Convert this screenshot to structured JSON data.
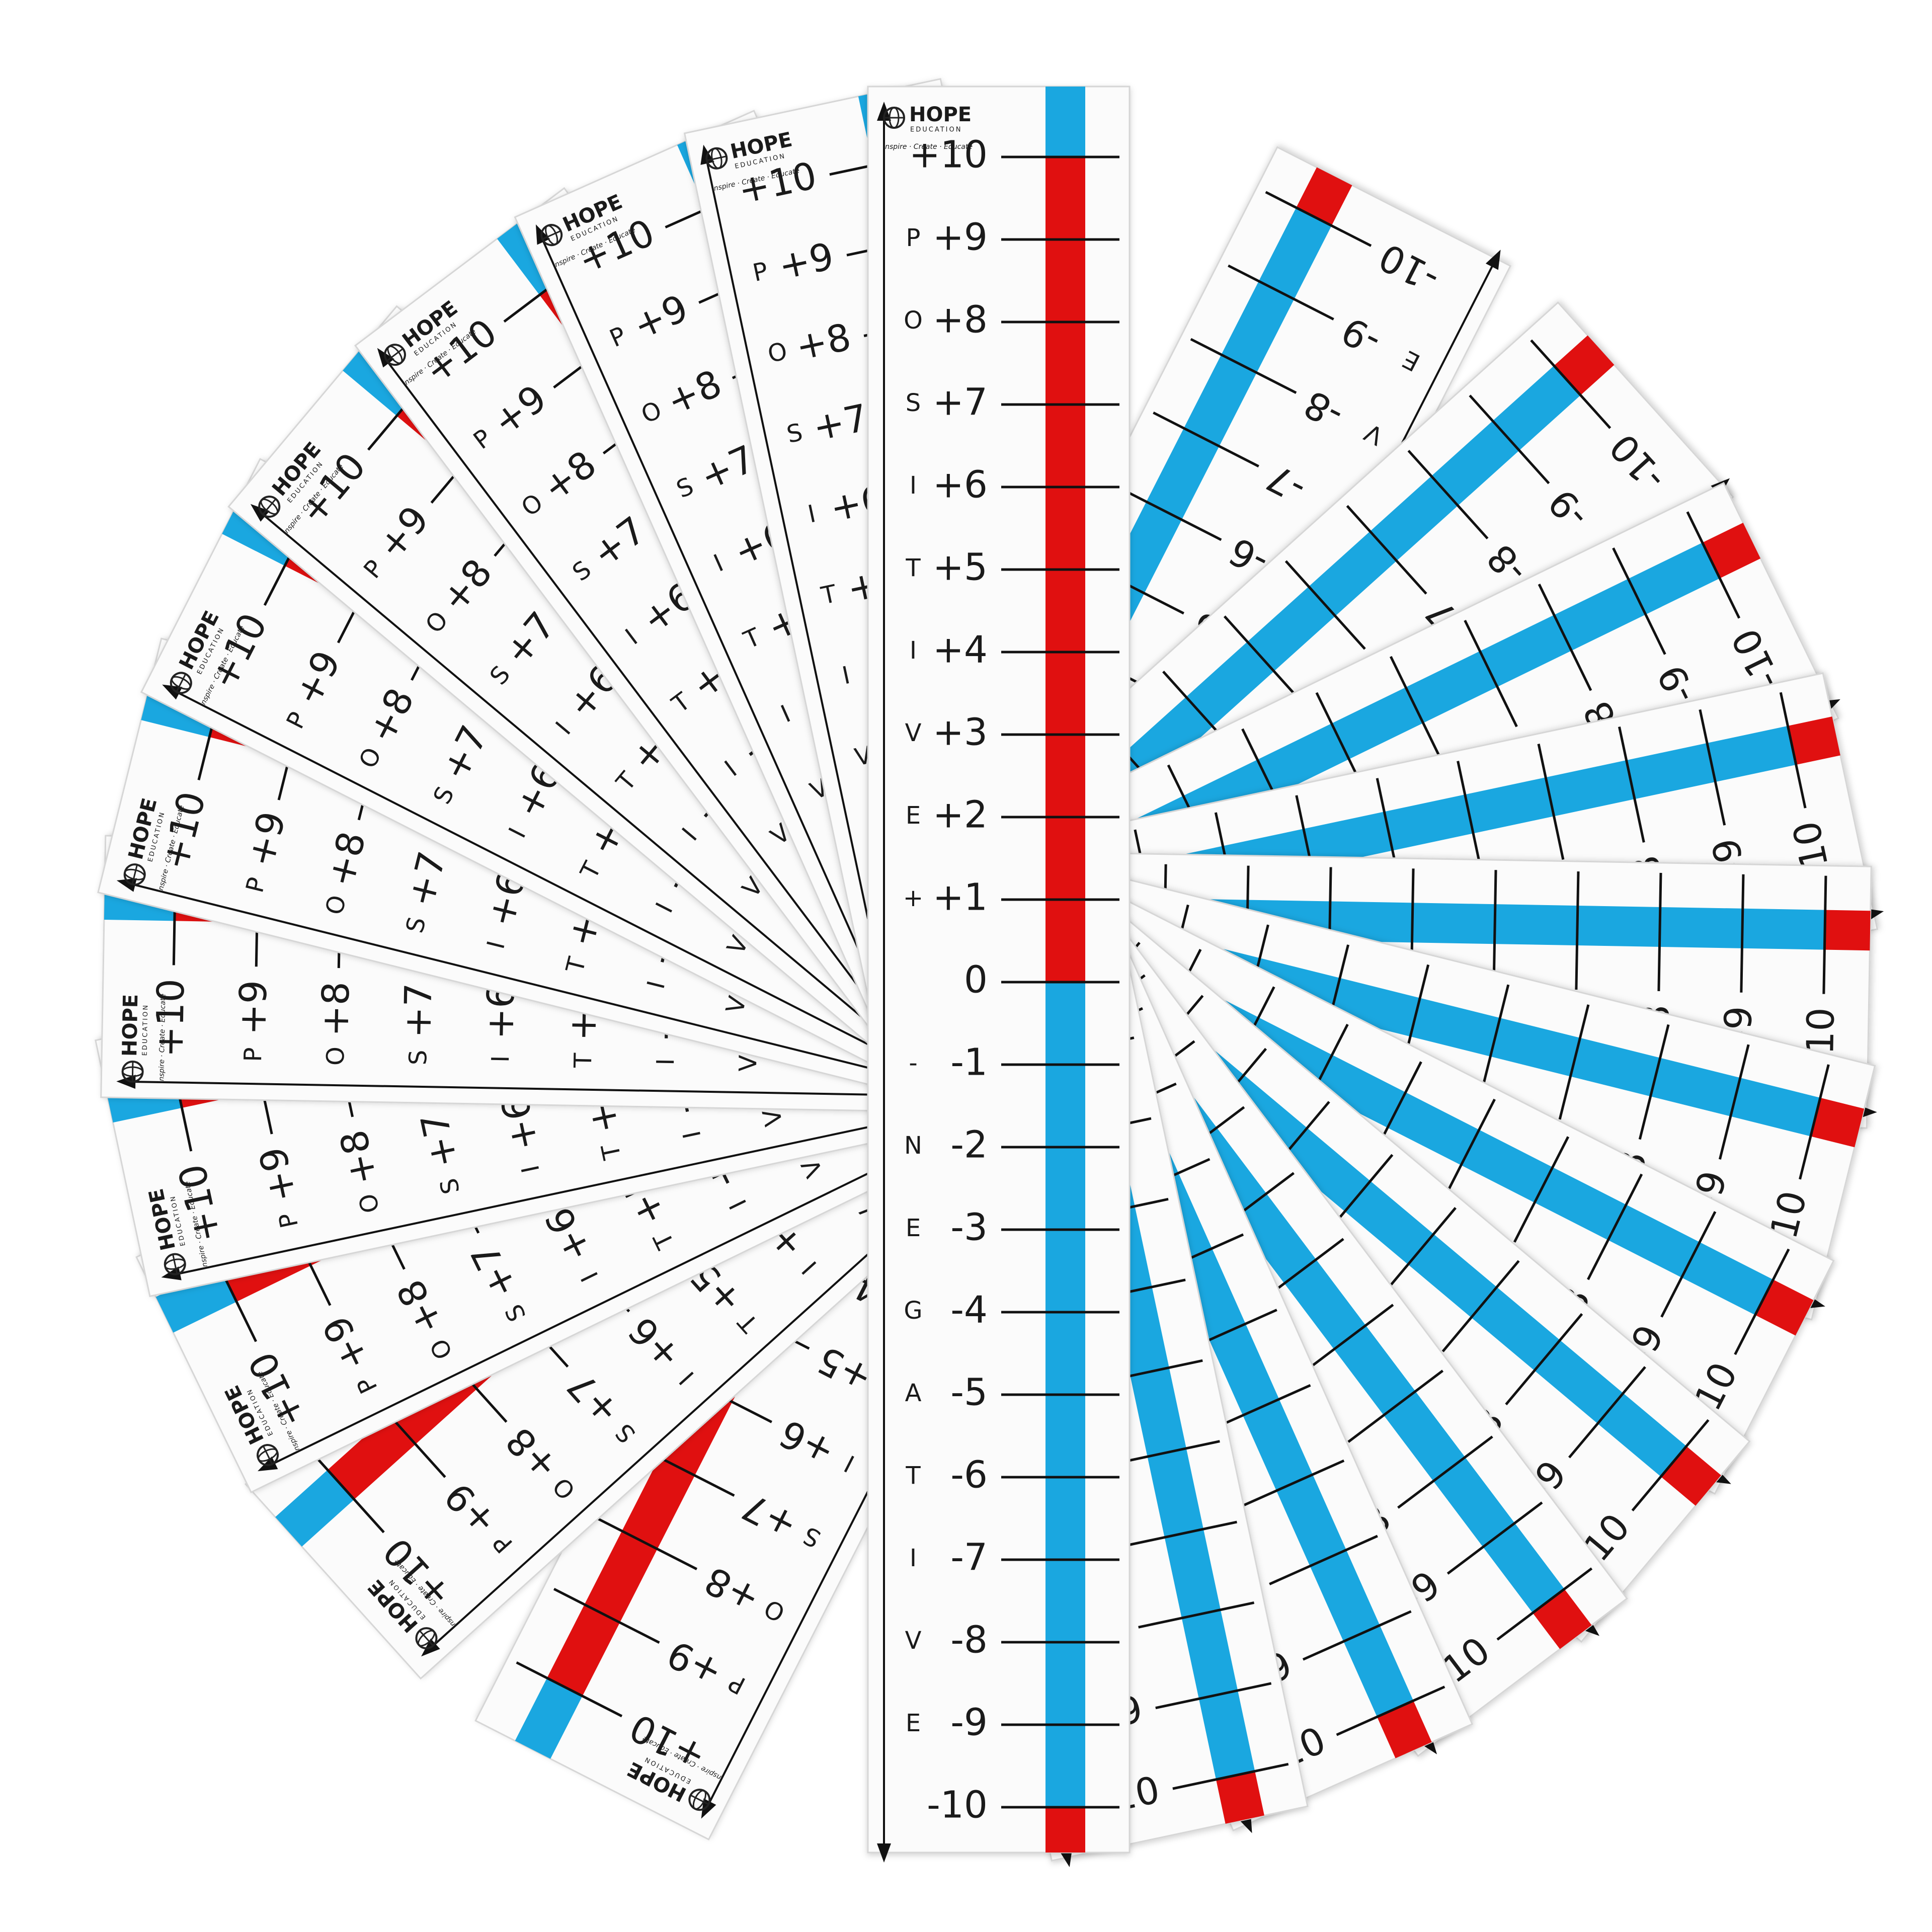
{
  "strip": {
    "brand": "HOPE",
    "brand_sub": "EDUCATION",
    "tagline": "Inspire · Create · Educate",
    "rows": [
      {
        "number": "+10"
      },
      {
        "letter": "P",
        "number": "+9"
      },
      {
        "letter": "O",
        "number": "+8"
      },
      {
        "letter": "S",
        "number": "+7"
      },
      {
        "letter": "I",
        "number": "+6"
      },
      {
        "letter": "T",
        "number": "+5"
      },
      {
        "letter": "I",
        "number": "+4"
      },
      {
        "letter": "V",
        "number": "+3"
      },
      {
        "letter": "E",
        "number": "+2"
      },
      {
        "letter": "+",
        "number": "+1"
      },
      {
        "number": "0"
      },
      {
        "letter": "-",
        "number": "-1"
      },
      {
        "letter": "N",
        "number": "-2"
      },
      {
        "letter": "E",
        "number": "-3"
      },
      {
        "letter": "G",
        "number": "-4"
      },
      {
        "letter": "A",
        "number": "-5"
      },
      {
        "letter": "T",
        "number": "-6"
      },
      {
        "letter": "I",
        "number": "-7"
      },
      {
        "letter": "V",
        "number": "-8"
      },
      {
        "letter": "E",
        "number": "-9"
      },
      {
        "number": "-10"
      }
    ]
  }
}
